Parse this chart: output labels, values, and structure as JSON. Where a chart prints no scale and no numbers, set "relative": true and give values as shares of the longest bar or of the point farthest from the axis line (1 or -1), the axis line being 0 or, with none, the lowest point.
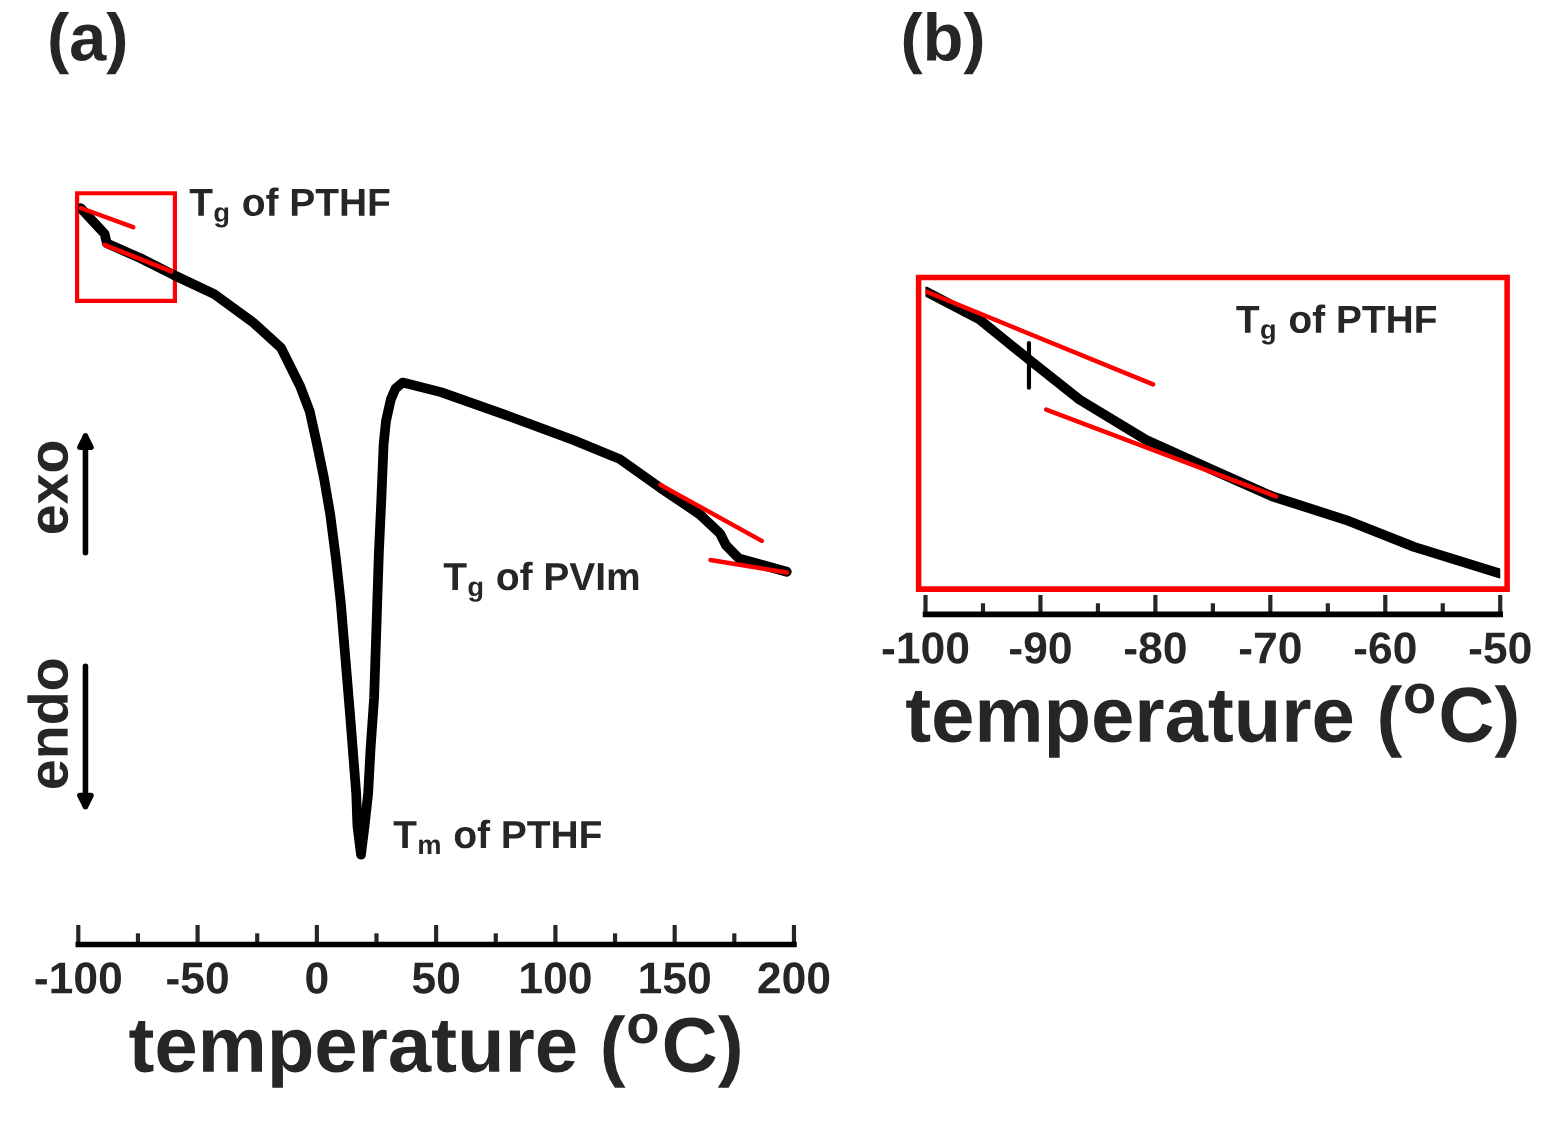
{
  "chart_data": [
    {
      "type": "line",
      "title": "(a)",
      "xlabel": "temperature ($^{o}$C)",
      "relative": true,
      "xlim": [
        -100,
        200
      ],
      "xticks": [
        -100,
        -50,
        0,
        50,
        100,
        150,
        200
      ],
      "tick_labels": "x",
      "series": [
        {
          "color": "#000000",
          "x": [
            -99,
            -89,
            -88,
            -74,
            -60,
            -43,
            -26.5,
            -15,
            -7,
            -3,
            0,
            3,
            5.6,
            8,
            10,
            12,
            14,
            16.5,
            17,
            18.5,
            20,
            21.5,
            22.5,
            24,
            25,
            26,
            27,
            28,
            29,
            31,
            33,
            36,
            52,
            79,
            107.5,
            127,
            144,
            160.5,
            169,
            171.5,
            177,
            186,
            197
          ],
          "values": [
            1.0,
            0.965,
            0.952,
            0.932,
            0.909,
            0.883,
            0.844,
            0.81,
            0.758,
            0.724,
            0.68,
            0.633,
            0.584,
            0.524,
            0.465,
            0.387,
            0.309,
            0.205,
            0.161,
            0.122,
            0.161,
            0.205,
            0.265,
            0.335,
            0.433,
            0.532,
            0.602,
            0.68,
            0.711,
            0.74,
            0.755,
            0.763,
            0.75,
            0.719,
            0.685,
            0.659,
            0.62,
            0.584,
            0.558,
            0.542,
            0.524,
            0.516,
            0.506
          ]
        },
        {
          "color": "#ff0000",
          "x": [
            -99,
            -77
          ],
          "values": [
            1.0,
            0.974
          ]
        },
        {
          "color": "#ff0000",
          "x": [
            -89,
            -61
          ],
          "values": [
            0.95,
            0.914
          ]
        },
        {
          "color": "#ff0000",
          "x": [
            144,
            186.5
          ],
          "values": [
            0.624,
            0.548
          ]
        },
        {
          "color": "#ff0000",
          "x": [
            165,
            197
          ],
          "values": [
            0.522,
            0.505
          ]
        }
      ],
      "annotations": [
        "T$_{g}$ of PTHF",
        "T$_{g}$ of PVIm",
        "T$_{m}$ of PTHF",
        "exo",
        "endo"
      ]
    },
    {
      "type": "line",
      "title": "(b)",
      "xlabel": "temperature ($^{o}$C)",
      "relative": true,
      "xlim": [
        -100,
        -50
      ],
      "xticks": [
        -100,
        -90,
        -80,
        -70,
        -60,
        -50
      ],
      "tick_labels": "x",
      "series": [
        {
          "color": "#000000",
          "x": [
            -100,
            -95.3,
            -91,
            -86.6,
            -80.8,
            -75,
            -69.8,
            -63.4,
            -57.5,
            -50
          ],
          "values": [
            1.0,
            0.913,
            0.789,
            0.665,
            0.54,
            0.447,
            0.365,
            0.292,
            0.209,
            0.126
          ]
        },
        {
          "color": "#ff0000",
          "x": [
            -100,
            -80.2
          ],
          "values": [
            1.0,
            0.712
          ]
        },
        {
          "color": "#ff0000",
          "x": [
            -89.5,
            -69.5
          ],
          "values": [
            0.634,
            0.365
          ]
        },
        {
          "color": "#000000",
          "x": [
            -91,
            -91
          ],
          "values": [
            0.84,
            0.702
          ]
        }
      ],
      "annotations": [
        "T$_{g}$ of PTHF"
      ]
    }
  ]
}
